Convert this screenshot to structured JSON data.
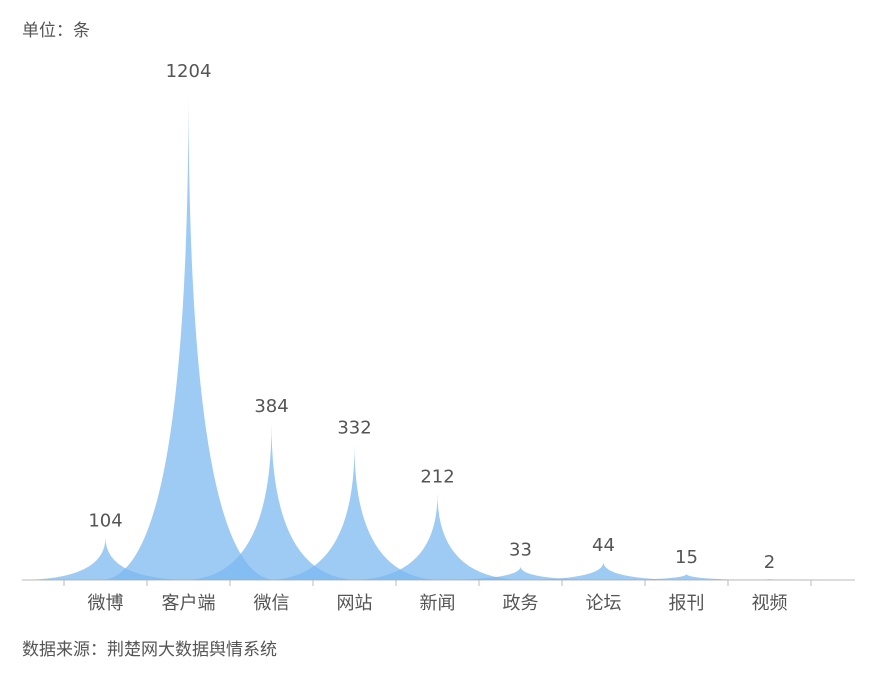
{
  "chart_data": {
    "type": "bar",
    "subtitle": "单位：条",
    "source": "数据来源：荆楚网大数据舆情系统",
    "categories": [
      "微博",
      "客户端",
      "微信",
      "网站",
      "新闻",
      "政务",
      "论坛",
      "报刊",
      "视频"
    ],
    "values": [
      104,
      1204,
      384,
      332,
      212,
      33,
      44,
      15,
      2
    ],
    "color": "#78b7f0"
  }
}
